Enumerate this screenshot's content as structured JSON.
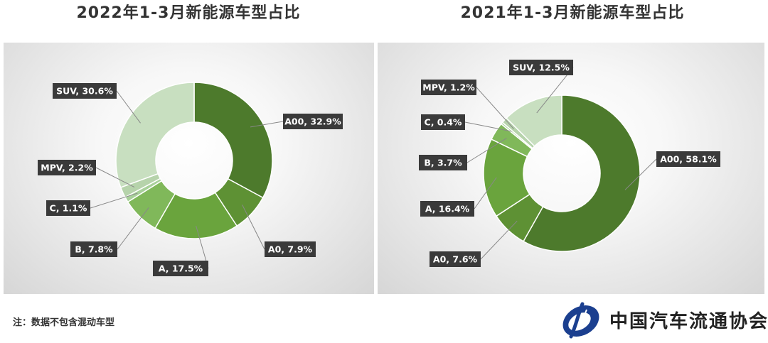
{
  "chart_data": [
    {
      "type": "pie",
      "title": "2022年1-3月新能源车型占比",
      "categories": [
        "A00",
        "A0",
        "A",
        "B",
        "C",
        "MPV",
        "SUV"
      ],
      "values": [
        32.9,
        7.9,
        17.5,
        7.8,
        1.1,
        2.2,
        30.6
      ],
      "labels": [
        "A00, 32.9%",
        "A0, 7.9%",
        "A, 17.5%",
        "B, 7.8%",
        "C, 1.1%",
        "MPV, 2.2%",
        "SUV, 30.6%"
      ],
      "colors": [
        "#4d7a2c",
        "#5e9134",
        "#6aa43d",
        "#80b85a",
        "#a8d09a",
        "#b6d3ab",
        "#c8dfc0"
      ],
      "legend": "none"
    },
    {
      "type": "pie",
      "title": "2021年1-3月新能源车型占比",
      "categories": [
        "A00",
        "A0",
        "A",
        "B",
        "C",
        "MPV",
        "SUV"
      ],
      "values": [
        58.1,
        7.6,
        16.4,
        3.7,
        0.4,
        1.2,
        12.5
      ],
      "labels": [
        "A00, 58.1%",
        "A0, 7.6%",
        "A, 16.4%",
        "B, 3.7%",
        "C, 0.4%",
        "MPV, 1.2%",
        "SUV, 12.5%"
      ],
      "colors": [
        "#4d7a2c",
        "#5e9134",
        "#6aa43d",
        "#80b85a",
        "#a8d09a",
        "#b6d3ab",
        "#c8dfc0"
      ],
      "legend": "none"
    }
  ],
  "note": "注：数据不包含混动车型",
  "logo": {
    "name": "中国汽车流通协会",
    "icon": "cada-logo-icon"
  },
  "colors": {
    "label_bg": "#3a3a3a",
    "leader_line": "#888888"
  }
}
